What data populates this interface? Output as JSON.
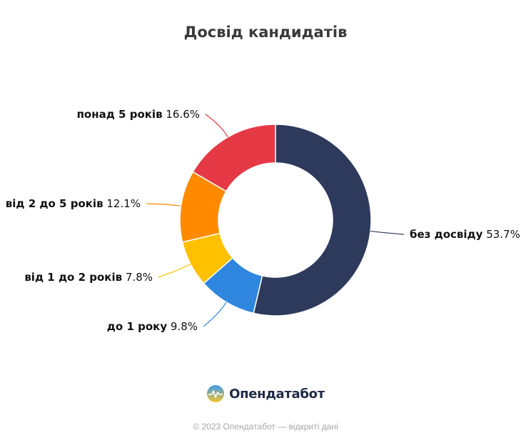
{
  "chart_data": {
    "type": "pie",
    "style": "donut",
    "title": "Досвід кандидатів",
    "slices": [
      {
        "label": "без досвіду",
        "value": 53.7,
        "value_text": "53.7%",
        "color": "#2e3a5c"
      },
      {
        "label": "до 1 року",
        "value": 9.8,
        "value_text": "9.8%",
        "color": "#2f86de"
      },
      {
        "label": "від 1 до 2 років",
        "value": 7.8,
        "value_text": "7.8%",
        "color": "#ffc000"
      },
      {
        "label": "від 2 до 5 років",
        "value": 12.1,
        "value_text": "12.1%",
        "color": "#ff8a00"
      },
      {
        "label": "понад 5 років",
        "value": 16.6,
        "value_text": "16.6%",
        "color": "#e63946"
      }
    ]
  },
  "brand": {
    "name": "Опендатабот",
    "logo_icon": "opendatabot-logo-icon"
  },
  "footer": {
    "text": "© 2023 Опендатабот — відкриті дані"
  }
}
